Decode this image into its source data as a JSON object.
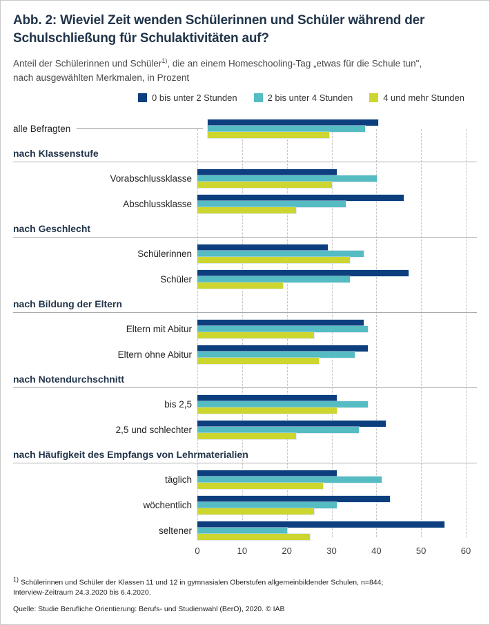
{
  "header": {
    "title_lines": [
      "Abb. 2: Wieviel Zeit wenden Schülerinnen und Schüler während der",
      "Schulschließung für Schulaktivitäten auf?"
    ],
    "subtitle_pre": "Anteil der Schülerinnen und Schüler",
    "subtitle_sup": "1)",
    "subtitle_post": ", die an einem Homeschooling-Tag „etwas für die Schule tun\",",
    "subtitle_line2": "nach ausgewählten Merkmalen, in Prozent"
  },
  "chart_data": {
    "type": "bar",
    "orientation": "horizontal",
    "unit": "Prozent",
    "series_names": [
      "0 bis unter 2 Stunden",
      "2 bis unter 4 Stunden",
      "4 und mehr Stunden"
    ],
    "colors": [
      "#0d3f7f",
      "#54bcc2",
      "#cdd62f"
    ],
    "xlim": [
      0,
      60
    ],
    "ticks": [
      "0",
      "10",
      "20",
      "30",
      "40",
      "50",
      "60"
    ],
    "grid": "dashed-vertical",
    "legend_position": "top-right",
    "groups": [
      {
        "header": null,
        "rows": [
          {
            "label": "alle Befragten",
            "values": [
              38,
              35,
              27
            ]
          }
        ]
      },
      {
        "header": "nach Klassenstufe",
        "rows": [
          {
            "label": "Vorabschlussklasse",
            "values": [
              31,
              40,
              30
            ]
          },
          {
            "label": "Abschlussklasse",
            "values": [
              46,
              33,
              22
            ]
          }
        ]
      },
      {
        "header": "nach Geschlecht",
        "rows": [
          {
            "label": "Schülerinnen",
            "values": [
              29,
              37,
              34
            ]
          },
          {
            "label": "Schüler",
            "values": [
              47,
              34,
              19
            ]
          }
        ]
      },
      {
        "header": "nach Bildung der Eltern",
        "rows": [
          {
            "label": "Eltern mit Abitur",
            "values": [
              37,
              38,
              26
            ]
          },
          {
            "label": "Eltern ohne Abitur",
            "values": [
              38,
              35,
              27
            ]
          }
        ]
      },
      {
        "header": "nach Notendurchschnitt",
        "rows": [
          {
            "label": "bis 2,5",
            "values": [
              31,
              38,
              31
            ]
          },
          {
            "label": "2,5 und schlechter",
            "values": [
              42,
              36,
              22
            ]
          }
        ]
      },
      {
        "header": "nach Häufigkeit des Empfangs von Lehrmaterialien",
        "rows": [
          {
            "label": "täglich",
            "values": [
              31,
              41,
              28
            ]
          },
          {
            "label": "wöchentlich",
            "values": [
              43,
              31,
              26
            ]
          },
          {
            "label": "seltener",
            "values": [
              55,
              20,
              25
            ]
          }
        ]
      }
    ]
  },
  "footer": {
    "footnote_sup": "1)",
    "footnote_line1": " Schülerinnen und Schüler der Klassen 11 und 12 in gymnasialen Oberstufen allgemeinbildender Schulen, n=844;",
    "footnote_line2": "Interview-Zeitraum 24.3.2020 bis 6.4.2020.",
    "source": "Quelle: Studie Berufliche Orientierung: Berufs- und Studienwahl (BerO), 2020. © IAB"
  }
}
